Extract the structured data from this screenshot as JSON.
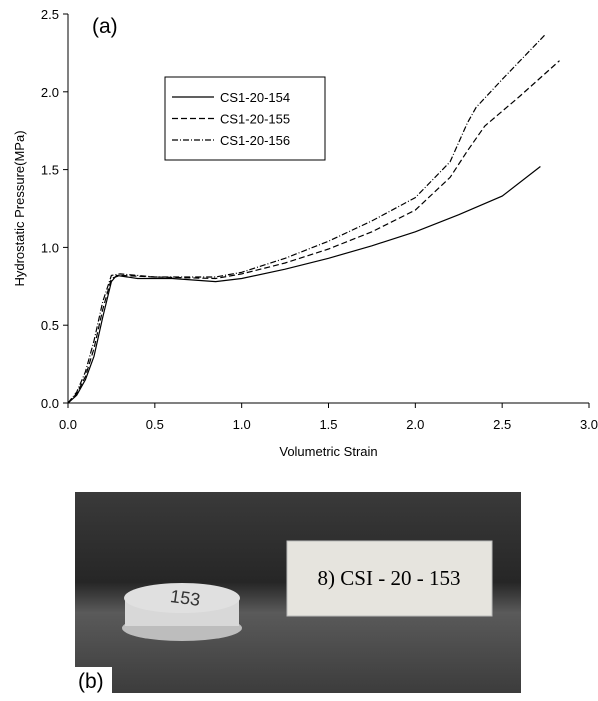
{
  "chart_data": {
    "type": "line",
    "annotation": "(a)",
    "xlabel": "Volumetric Strain",
    "ylabel": "Hydrostatic Pressure(MPa)",
    "xlim": [
      0,
      3
    ],
    "ylim": [
      0,
      2.5
    ],
    "xticks": [
      {
        "value": 0,
        "label": "0.0"
      },
      {
        "value": 0.5,
        "label": "0.5"
      },
      {
        "value": 1,
        "label": "1.0"
      },
      {
        "value": 1.5,
        "label": "1.5"
      },
      {
        "value": 2,
        "label": "2.0"
      },
      {
        "value": 2.5,
        "label": "2.5"
      },
      {
        "value": 3,
        "label": "3.0"
      }
    ],
    "yticks": [
      {
        "value": 0,
        "label": "0.0"
      },
      {
        "value": 0.5,
        "label": "0.5"
      },
      {
        "value": 1,
        "label": "1.0"
      },
      {
        "value": 1.5,
        "label": "1.5"
      },
      {
        "value": 2,
        "label": "2.0"
      },
      {
        "value": 2.5,
        "label": "2.5"
      }
    ],
    "legend": "upper-left",
    "series": [
      {
        "name": "CS1-20-154",
        "color": "#000000",
        "dash": "solid",
        "x": [
          0,
          0.05,
          0.1,
          0.15,
          0.2,
          0.25,
          0.28,
          0.4,
          0.6,
          0.85,
          1.0,
          1.25,
          1.5,
          1.75,
          2.0,
          2.25,
          2.5,
          2.72
        ],
        "values": [
          0,
          0.05,
          0.15,
          0.3,
          0.55,
          0.78,
          0.82,
          0.8,
          0.8,
          0.78,
          0.8,
          0.86,
          0.93,
          1.01,
          1.1,
          1.21,
          1.33,
          1.52
        ]
      },
      {
        "name": "CS1-20-155",
        "color": "#000000",
        "dash": "dashed",
        "x": [
          0,
          0.05,
          0.1,
          0.15,
          0.2,
          0.25,
          0.3,
          0.5,
          0.85,
          1.0,
          1.25,
          1.5,
          1.75,
          2.0,
          2.2,
          2.3,
          2.4,
          2.6,
          2.83
        ],
        "values": [
          0,
          0.06,
          0.17,
          0.35,
          0.6,
          0.8,
          0.82,
          0.81,
          0.8,
          0.83,
          0.9,
          0.99,
          1.1,
          1.24,
          1.45,
          1.62,
          1.78,
          1.97,
          2.2
        ]
      },
      {
        "name": "CS1-20-156",
        "color": "#000000",
        "dash": "dashdot",
        "x": [
          0,
          0.05,
          0.1,
          0.15,
          0.2,
          0.25,
          0.3,
          0.5,
          0.85,
          1.0,
          1.25,
          1.5,
          1.75,
          2.0,
          2.2,
          2.3,
          2.35,
          2.5,
          2.75
        ],
        "values": [
          0,
          0.07,
          0.2,
          0.4,
          0.65,
          0.82,
          0.83,
          0.81,
          0.81,
          0.84,
          0.93,
          1.04,
          1.17,
          1.32,
          1.55,
          1.8,
          1.9,
          2.08,
          2.37
        ]
      }
    ]
  },
  "photo": {
    "label": "(b)",
    "card_text": "8) CSI - 20 - 153",
    "disk_text": "153"
  }
}
